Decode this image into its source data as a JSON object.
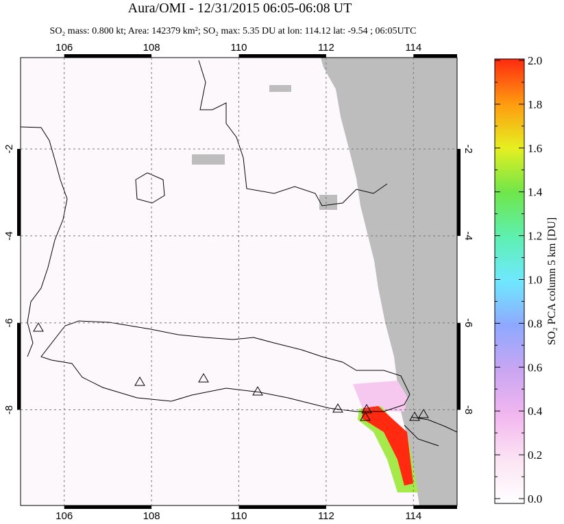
{
  "map": {
    "title": "Aura/OMI - 12/31/2015 06:05-06:08 UT",
    "subtitle": "SO₂ mass: 0.800 kt; Area: 142379 km²; SO₂ max: 5.35 DU at lon: 114.12 lat: -9.54 ; 06:05UTC",
    "lonlim": [
      105,
      115
    ],
    "latlim": [
      -10.2,
      0.1
    ],
    "lon_ticks": [
      106,
      108,
      110,
      112,
      114
    ],
    "lat_ticks": [
      -2,
      -4,
      -6,
      -8
    ],
    "grid": true
  },
  "colorbar": {
    "label": "SO₂ PCA column 5 km [DU]",
    "lim": [
      0,
      2
    ],
    "ticks": [
      {
        "value": 0,
        "label": "0.0"
      },
      {
        "value": 0.2,
        "label": "0.2"
      },
      {
        "value": 0.4,
        "label": "0.4"
      },
      {
        "value": 0.6,
        "label": "0.6"
      },
      {
        "value": 0.8,
        "label": "0.8"
      },
      {
        "value": 1,
        "label": "1.0"
      },
      {
        "value": 1.2,
        "label": "1.2"
      },
      {
        "value": 1.4,
        "label": "1.4"
      },
      {
        "value": 1.6,
        "label": "1.6"
      },
      {
        "value": 1.8,
        "label": "1.8"
      },
      {
        "value": 2,
        "label": "2.0"
      }
    ]
  }
}
